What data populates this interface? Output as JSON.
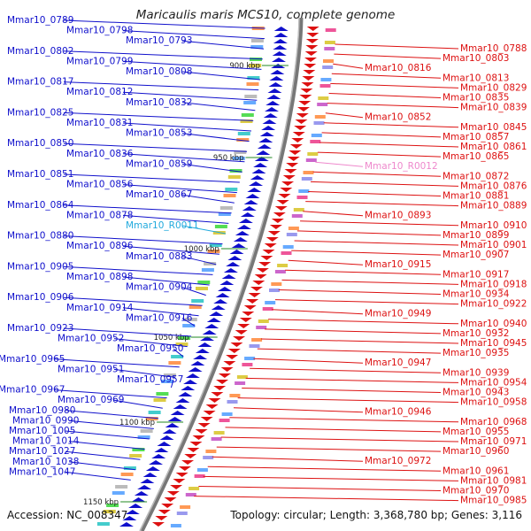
{
  "title": "Maricaulis maris MCS10, complete genome",
  "footer": {
    "accession": "Accession: NC_008347",
    "summary": "Topology: circular; Length: 3,368,780 bp; Genes: 3,116"
  },
  "colors": {
    "left_gene": "#1010cc",
    "right_gene": "#dd1111",
    "rna_left": "#22aadd",
    "rna_right": "#ee88cc",
    "backbone": "#777777",
    "tick_mark": "#228822"
  },
  "kbp_marks": [
    "900 kbp",
    "950 kbp",
    "1000 kbp",
    "1050 kbp",
    "1100 kbp",
    "1150 kbp"
  ],
  "left_labels": [
    "Mmar10_0789",
    "Mmar10_0798",
    "Mmar10_0793",
    "Mmar10_0802",
    "Mmar10_0799",
    "Mmar10_0808",
    "Mmar10_0817",
    "Mmar10_0812",
    "Mmar10_0832",
    "Mmar10_0825",
    "Mmar10_0831",
    "Mmar10_0853",
    "Mmar10_0850",
    "Mmar10_0836",
    "Mmar10_0859",
    "Mmar10_0851",
    "Mmar10_0856",
    "Mmar10_0867",
    "Mmar10_0864",
    "Mmar10_0878",
    "Mmar10_R0011",
    "Mmar10_0880",
    "Mmar10_0896",
    "Mmar10_0883",
    "Mmar10_0905",
    "Mmar10_0898",
    "Mmar10_0904",
    "Mmar10_0906",
    "Mmar10_0914",
    "Mmar10_0916",
    "Mmar10_0923",
    "Mmar10_0952",
    "Mmar10_0950",
    "Mmar10_0965",
    "Mmar10_0951",
    "Mmar10_0957",
    "Mmar10_0967",
    "Mmar10_0969",
    "Mmar10_0980",
    "Mmar10_0990",
    "Mmar10_1005",
    "Mmar10_1014",
    "Mmar10_1027",
    "Mmar10_1038",
    "Mmar10_1047"
  ],
  "right_labels": [
    "Mmar10_0788",
    "Mmar10_0803",
    "Mmar10_0816",
    "Mmar10_0813",
    "Mmar10_0829",
    "Mmar10_0835",
    "Mmar10_0839",
    "Mmar10_0852",
    "Mmar10_0845",
    "Mmar10_0857",
    "Mmar10_0861",
    "Mmar10_0865",
    "Mmar10_R0012",
    "Mmar10_0872",
    "Mmar10_0876",
    "Mmar10_0881",
    "Mmar10_0889",
    "Mmar10_0893",
    "Mmar10_0910",
    "Mmar10_0899",
    "Mmar10_0901",
    "Mmar10_0907",
    "Mmar10_0915",
    "Mmar10_0917",
    "Mmar10_0918",
    "Mmar10_0934",
    "Mmar10_0922",
    "Mmar10_0949",
    "Mmar10_0940",
    "Mmar10_0932",
    "Mmar10_0945",
    "Mmar10_0935",
    "Mmar10_0947",
    "Mmar10_0939",
    "Mmar10_0954",
    "Mmar10_0943",
    "Mmar10_0958",
    "Mmar10_0946",
    "Mmar10_0968",
    "Mmar10_0955",
    "Mmar10_0971",
    "Mmar10_0960",
    "Mmar10_0972",
    "Mmar10_0961",
    "Mmar10_0981",
    "Mmar10_0970",
    "Mmar10_0985"
  ]
}
